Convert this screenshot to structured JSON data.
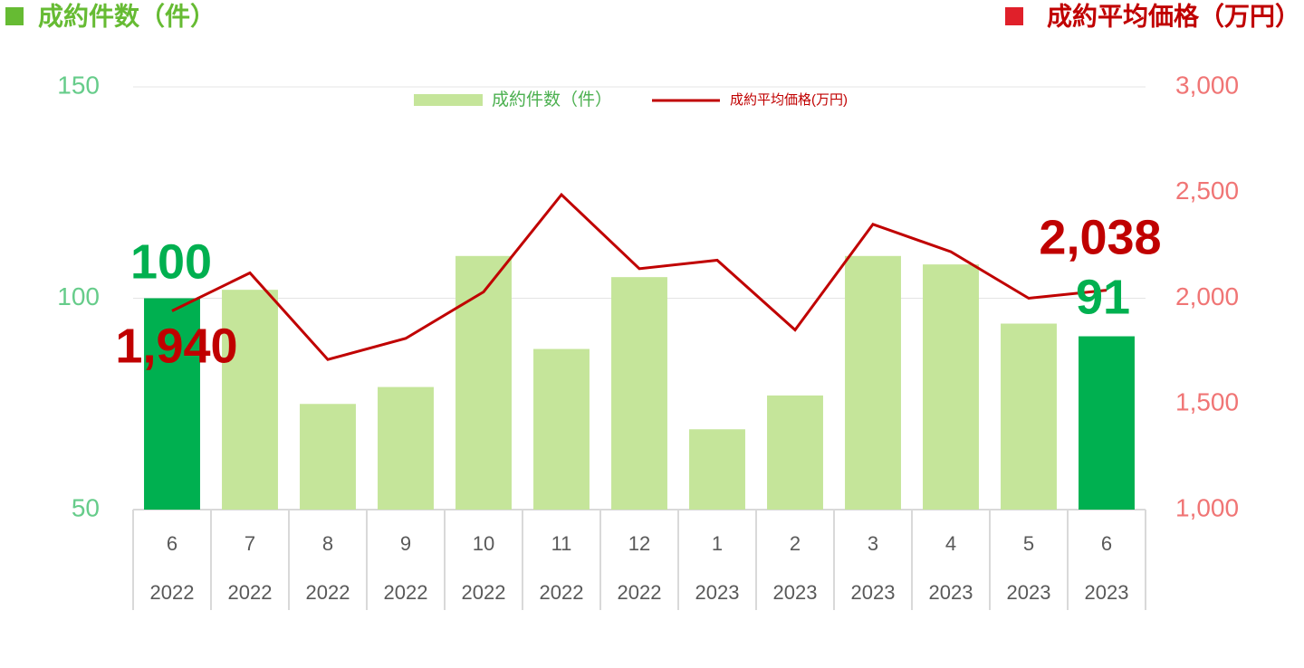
{
  "chart_data": {
    "type": "bar-line",
    "left_axis_title": "成約件数（件）",
    "right_axis_title": "成約平均価格（万円）",
    "categories": [
      [
        "6",
        "2022"
      ],
      [
        "7",
        "2022"
      ],
      [
        "8",
        "2022"
      ],
      [
        "9",
        "2022"
      ],
      [
        "10",
        "2022"
      ],
      [
        "11",
        "2022"
      ],
      [
        "12",
        "2022"
      ],
      [
        "1",
        "2023"
      ],
      [
        "2",
        "2023"
      ],
      [
        "3",
        "2023"
      ],
      [
        "4",
        "2023"
      ],
      [
        "5",
        "2023"
      ],
      [
        "6",
        "2023"
      ]
    ],
    "series": [
      {
        "name": "成約件数（件）",
        "type": "bar",
        "color": "#c5e59a",
        "colors": [
          "#00b050",
          "#c5e59a",
          "#c5e59a",
          "#c5e59a",
          "#c5e59a",
          "#c5e59a",
          "#c5e59a",
          "#c5e59a",
          "#c5e59a",
          "#c5e59a",
          "#c5e59a",
          "#c5e59a",
          "#00b050"
        ],
        "values": [
          100,
          102,
          75,
          79,
          110,
          88,
          105,
          69,
          77,
          110,
          108,
          94,
          91
        ],
        "value_labels": [
          "100",
          null,
          null,
          null,
          null,
          null,
          null,
          null,
          null,
          null,
          null,
          null,
          "91"
        ]
      },
      {
        "name": "成約平均価格(万円)",
        "type": "line",
        "axis": "y2",
        "color": "#c00000",
        "values": [
          1940,
          2120,
          1710,
          1810,
          2030,
          2490,
          2140,
          2180,
          1850,
          2350,
          2220,
          2000,
          2038
        ],
        "value_labels": [
          "1,940",
          null,
          null,
          null,
          null,
          null,
          null,
          null,
          null,
          null,
          null,
          null,
          "2,038"
        ]
      }
    ],
    "ylim": [
      50,
      150
    ],
    "yticks": [
      50,
      100,
      150
    ],
    "y2lim": [
      1000,
      3000
    ],
    "y2ticks": [
      {
        "value": 1000,
        "label": "1,000"
      },
      {
        "value": 1500,
        "label": "1,500"
      },
      {
        "value": 2000,
        "label": "2,000"
      },
      {
        "value": 2500,
        "label": "2,500"
      },
      {
        "value": 3000,
        "label": "3,000"
      }
    ],
    "grid": true
  }
}
